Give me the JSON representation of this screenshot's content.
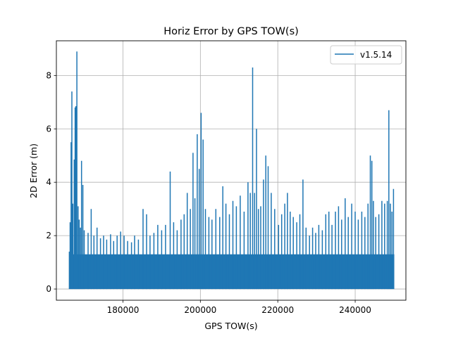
{
  "chart_data": {
    "type": "line",
    "title": "Horiz Error by GPS TOW(s)",
    "xlabel": "GPS TOW(s)",
    "ylabel": "2D Error (m)",
    "xlim": [
      162800,
      253100
    ],
    "ylim": [
      -0.42,
      9.3
    ],
    "xticks": [
      180000,
      200000,
      220000,
      240000
    ],
    "yticks": [
      0,
      2,
      4,
      6,
      8
    ],
    "grid": true,
    "legend_position": "top-right",
    "color": "#1f77b4",
    "series": [
      {
        "name": "v1.5.14",
        "x_start": 166100,
        "x_end": 250100,
        "baseline": 0.0,
        "floor_level": 1.3,
        "peaks": [
          [
            166150,
            1.4
          ],
          [
            166350,
            2.5
          ],
          [
            166600,
            5.5
          ],
          [
            166800,
            7.4
          ],
          [
            167050,
            3.2
          ],
          [
            167400,
            4.85
          ],
          [
            167650,
            6.8
          ],
          [
            167850,
            6.85
          ],
          [
            168100,
            8.9
          ],
          [
            168400,
            3.1
          ],
          [
            168700,
            2.6
          ],
          [
            169000,
            2.3
          ],
          [
            169300,
            4.8
          ],
          [
            169650,
            3.9
          ],
          [
            170000,
            2.2
          ],
          [
            171000,
            2.1
          ],
          [
            171800,
            3.0
          ],
          [
            172500,
            2.0
          ],
          [
            173300,
            2.3
          ],
          [
            174200,
            1.9
          ],
          [
            175000,
            2.0
          ],
          [
            175800,
            1.85
          ],
          [
            176800,
            2.05
          ],
          [
            177600,
            1.8
          ],
          [
            178500,
            2.0
          ],
          [
            179400,
            2.15
          ],
          [
            180300,
            2.0
          ],
          [
            181200,
            1.8
          ],
          [
            182200,
            1.75
          ],
          [
            183000,
            2.0
          ],
          [
            184000,
            1.85
          ],
          [
            185200,
            3.0
          ],
          [
            186100,
            2.8
          ],
          [
            187000,
            2.0
          ],
          [
            188000,
            2.1
          ],
          [
            189000,
            2.4
          ],
          [
            190000,
            2.2
          ],
          [
            191000,
            2.4
          ],
          [
            192200,
            4.4
          ],
          [
            193100,
            2.5
          ],
          [
            194000,
            2.2
          ],
          [
            195000,
            2.6
          ],
          [
            195800,
            2.8
          ],
          [
            196600,
            3.6
          ],
          [
            197400,
            3.0
          ],
          [
            198100,
            5.1
          ],
          [
            198600,
            3.4
          ],
          [
            199200,
            5.8
          ],
          [
            199700,
            4.5
          ],
          [
            200200,
            6.6
          ],
          [
            200700,
            5.6
          ],
          [
            201300,
            3.0
          ],
          [
            202200,
            2.7
          ],
          [
            203000,
            2.6
          ],
          [
            204000,
            3.0
          ],
          [
            205000,
            2.7
          ],
          [
            205800,
            3.85
          ],
          [
            206600,
            3.2
          ],
          [
            207500,
            2.8
          ],
          [
            208400,
            3.3
          ],
          [
            209300,
            3.1
          ],
          [
            210300,
            3.5
          ],
          [
            211300,
            2.9
          ],
          [
            212300,
            4.0
          ],
          [
            212900,
            3.6
          ],
          [
            213500,
            8.3
          ],
          [
            214000,
            3.6
          ],
          [
            214500,
            6.0
          ],
          [
            215000,
            3.0
          ],
          [
            215600,
            3.1
          ],
          [
            216300,
            4.1
          ],
          [
            216900,
            5.0
          ],
          [
            217500,
            4.6
          ],
          [
            218300,
            3.6
          ],
          [
            219200,
            3.0
          ],
          [
            220200,
            2.4
          ],
          [
            221000,
            2.8
          ],
          [
            221800,
            3.2
          ],
          [
            222500,
            3.6
          ],
          [
            223200,
            2.9
          ],
          [
            224000,
            2.7
          ],
          [
            224900,
            2.5
          ],
          [
            225700,
            2.8
          ],
          [
            226500,
            4.1
          ],
          [
            227300,
            2.3
          ],
          [
            228200,
            2.0
          ],
          [
            229000,
            2.3
          ],
          [
            229800,
            2.1
          ],
          [
            230600,
            2.4
          ],
          [
            231500,
            2.2
          ],
          [
            232400,
            2.8
          ],
          [
            233200,
            2.9
          ],
          [
            234000,
            2.4
          ],
          [
            234900,
            2.9
          ],
          [
            235700,
            3.1
          ],
          [
            236500,
            2.6
          ],
          [
            237400,
            3.4
          ],
          [
            238200,
            2.7
          ],
          [
            239100,
            3.2
          ],
          [
            240000,
            2.9
          ],
          [
            240800,
            2.6
          ],
          [
            241700,
            2.9
          ],
          [
            242500,
            2.7
          ],
          [
            243300,
            3.2
          ],
          [
            243900,
            5.0
          ],
          [
            244300,
            4.8
          ],
          [
            244700,
            3.3
          ],
          [
            245300,
            2.7
          ],
          [
            246100,
            2.8
          ],
          [
            246900,
            3.3
          ],
          [
            247600,
            3.2
          ],
          [
            248300,
            3.3
          ],
          [
            248700,
            6.7
          ],
          [
            249100,
            3.2
          ],
          [
            249500,
            2.9
          ],
          [
            249900,
            3.75
          ]
        ]
      }
    ]
  }
}
